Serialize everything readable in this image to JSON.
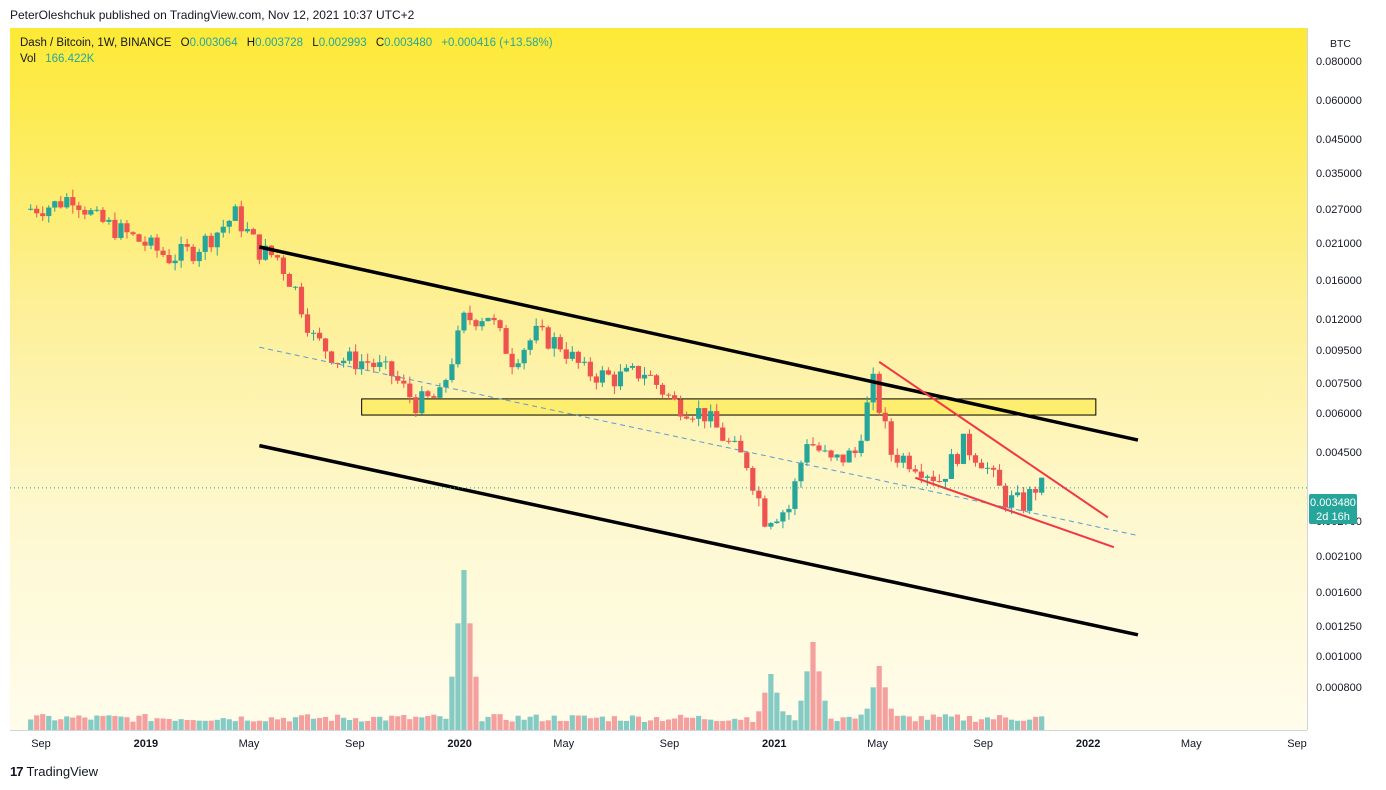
{
  "header": {
    "published": "PeterOleshchuk published on TradingView.com, Nov 12, 2021 10:37 UTC+2"
  },
  "legend": {
    "symbol": "Dash / Bitcoin, 1W, BINANCE",
    "o_label": "O",
    "o": "0.003064",
    "h_label": "H",
    "h": "0.003728",
    "l_label": "L",
    "l": "0.002993",
    "c_label": "C",
    "c": "0.003480",
    "change": "+0.000416 (+13.58%)",
    "vol_label": "Vol",
    "vol": "166.422K"
  },
  "axis": {
    "currency": "BTC",
    "current_price": "0.003480",
    "countdown": "2d 16h",
    "y_ticks": [
      "0.080000",
      "0.060000",
      "0.045000",
      "0.035000",
      "0.027000",
      "0.021000",
      "0.016000",
      "0.012000",
      "0.009500",
      "0.007500",
      "0.006000",
      "0.004500",
      "0.002700",
      "0.002100",
      "0.001600",
      "0.001250",
      "0.001000",
      "0.000800"
    ],
    "x_ticks": [
      "Sep",
      "2019",
      "May",
      "Sep",
      "2020",
      "May",
      "Sep",
      "2021",
      "May",
      "Sep",
      "2022",
      "May",
      "Sep"
    ]
  },
  "colors": {
    "up": "#26a69a",
    "down": "#ef5350",
    "vol_up": "#85cbc4",
    "vol_down": "#f4a09e",
    "channel": "#000000",
    "wedge": "#f23645",
    "trend": "#5b9bd5",
    "zone": "#fdee6f"
  },
  "chart_data": {
    "type": "candlestick",
    "symbol": "Dash / Bitcoin",
    "interval": "1W",
    "exchange": "BINANCE",
    "scale": "log",
    "price_unit": "BTC",
    "x_range": [
      "2018-08",
      "2022-09"
    ],
    "waypoints": [
      {
        "date": "2018-08-20",
        "price": 0.027
      },
      {
        "date": "2018-09-24",
        "price": 0.028
      },
      {
        "date": "2018-10-15",
        "price": 0.03
      },
      {
        "date": "2018-11-12",
        "price": 0.025
      },
      {
        "date": "2018-12-10",
        "price": 0.023
      },
      {
        "date": "2019-01-07",
        "price": 0.021
      },
      {
        "date": "2019-02-04",
        "price": 0.019
      },
      {
        "date": "2019-03-04",
        "price": 0.02
      },
      {
        "date": "2019-04-01",
        "price": 0.023
      },
      {
        "date": "2019-04-22",
        "price": 0.026
      },
      {
        "date": "2019-05-20",
        "price": 0.02
      },
      {
        "date": "2019-06-10",
        "price": 0.019
      },
      {
        "date": "2019-07-01",
        "price": 0.015
      },
      {
        "date": "2019-07-22",
        "price": 0.0105
      },
      {
        "date": "2019-08-19",
        "price": 0.009
      },
      {
        "date": "2019-09-23",
        "price": 0.0088
      },
      {
        "date": "2019-10-21",
        "price": 0.008
      },
      {
        "date": "2019-11-18",
        "price": 0.0065
      },
      {
        "date": "2019-12-16",
        "price": 0.0068
      },
      {
        "date": "2020-01-13",
        "price": 0.012
      },
      {
        "date": "2020-02-10",
        "price": 0.0125
      },
      {
        "date": "2020-03-09",
        "price": 0.009
      },
      {
        "date": "2020-04-06",
        "price": 0.0108
      },
      {
        "date": "2020-05-04",
        "price": 0.01
      },
      {
        "date": "2020-06-01",
        "price": 0.0082
      },
      {
        "date": "2020-07-06",
        "price": 0.0078
      },
      {
        "date": "2020-08-10",
        "price": 0.0082
      },
      {
        "date": "2020-09-14",
        "price": 0.0065
      },
      {
        "date": "2020-10-19",
        "price": 0.006
      },
      {
        "date": "2020-11-16",
        "price": 0.0048
      },
      {
        "date": "2020-12-07",
        "price": 0.0042
      },
      {
        "date": "2020-12-28",
        "price": 0.0028
      },
      {
        "date": "2021-01-25",
        "price": 0.003
      },
      {
        "date": "2021-02-15",
        "price": 0.005
      },
      {
        "date": "2021-03-15",
        "price": 0.0042
      },
      {
        "date": "2021-04-12",
        "price": 0.0045
      },
      {
        "date": "2021-05-03",
        "price": 0.0075
      },
      {
        "date": "2021-05-24",
        "price": 0.0045
      },
      {
        "date": "2021-06-21",
        "price": 0.0042
      },
      {
        "date": "2021-07-19",
        "price": 0.0037
      },
      {
        "date": "2021-08-16",
        "price": 0.0048
      },
      {
        "date": "2021-09-06",
        "price": 0.0043
      },
      {
        "date": "2021-10-04",
        "price": 0.0032
      },
      {
        "date": "2021-10-25",
        "price": 0.0031
      },
      {
        "date": "2021-11-08",
        "price": 0.0035
      }
    ],
    "volume_spikes": [
      {
        "date": "2020-01-06",
        "volume_rel": 1.0
      },
      {
        "date": "2020-12-28",
        "volume_rel": 0.35
      },
      {
        "date": "2021-02-15",
        "volume_rel": 0.55
      },
      {
        "date": "2021-05-03",
        "volume_rel": 0.4
      }
    ],
    "annotations": {
      "channel_upper": [
        {
          "date": "2019-05-13",
          "price": 0.0205
        },
        {
          "date": "2022-02-28",
          "price": 0.00495
        }
      ],
      "channel_lower": [
        {
          "date": "2019-05-13",
          "price": 0.00475
        },
        {
          "date": "2022-02-28",
          "price": 0.00118
        }
      ],
      "zone": {
        "start": "2019-09-09",
        "end": "2022-01-10",
        "top": 0.0067,
        "bottom": 0.00595
      },
      "trendline": [
        {
          "date": "2019-05-13",
          "price": 0.0098
        },
        {
          "date": "2022-02-28",
          "price": 0.00245
        }
      ],
      "wedge_upper": [
        {
          "date": "2021-05-03",
          "price": 0.0088
        },
        {
          "date": "2022-01-24",
          "price": 0.0028
        }
      ],
      "wedge_lower": [
        {
          "date": "2021-06-14",
          "price": 0.00375
        },
        {
          "date": "2022-01-31",
          "price": 0.00225
        }
      ]
    }
  }
}
